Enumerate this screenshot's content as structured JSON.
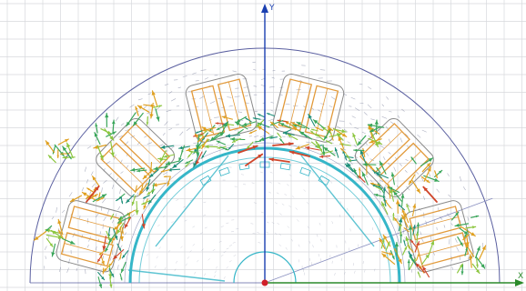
{
  "view": {
    "axes": {
      "y_label": "Y",
      "x_label": "X",
      "y_axis_color": "#1a3fb0",
      "x_axis_color": "#2a8a2a",
      "origin_color": "#d0202a"
    },
    "grid": {
      "visible": true,
      "color": "#d7d9dd"
    },
    "geometry": {
      "stator_outline_color": "#5a5fa0",
      "rotor_color": "#36b6c8",
      "coil_color": "#e29a3a",
      "slot_outline_color": "#8a8a8a",
      "slot_count_visible": 6
    },
    "field": {
      "vector_colors": [
        "#1f8f7a",
        "#3aa65a",
        "#8cc63f",
        "#e0a020",
        "#d0452a"
      ],
      "background_arrow_color": "#6a7090"
    }
  }
}
